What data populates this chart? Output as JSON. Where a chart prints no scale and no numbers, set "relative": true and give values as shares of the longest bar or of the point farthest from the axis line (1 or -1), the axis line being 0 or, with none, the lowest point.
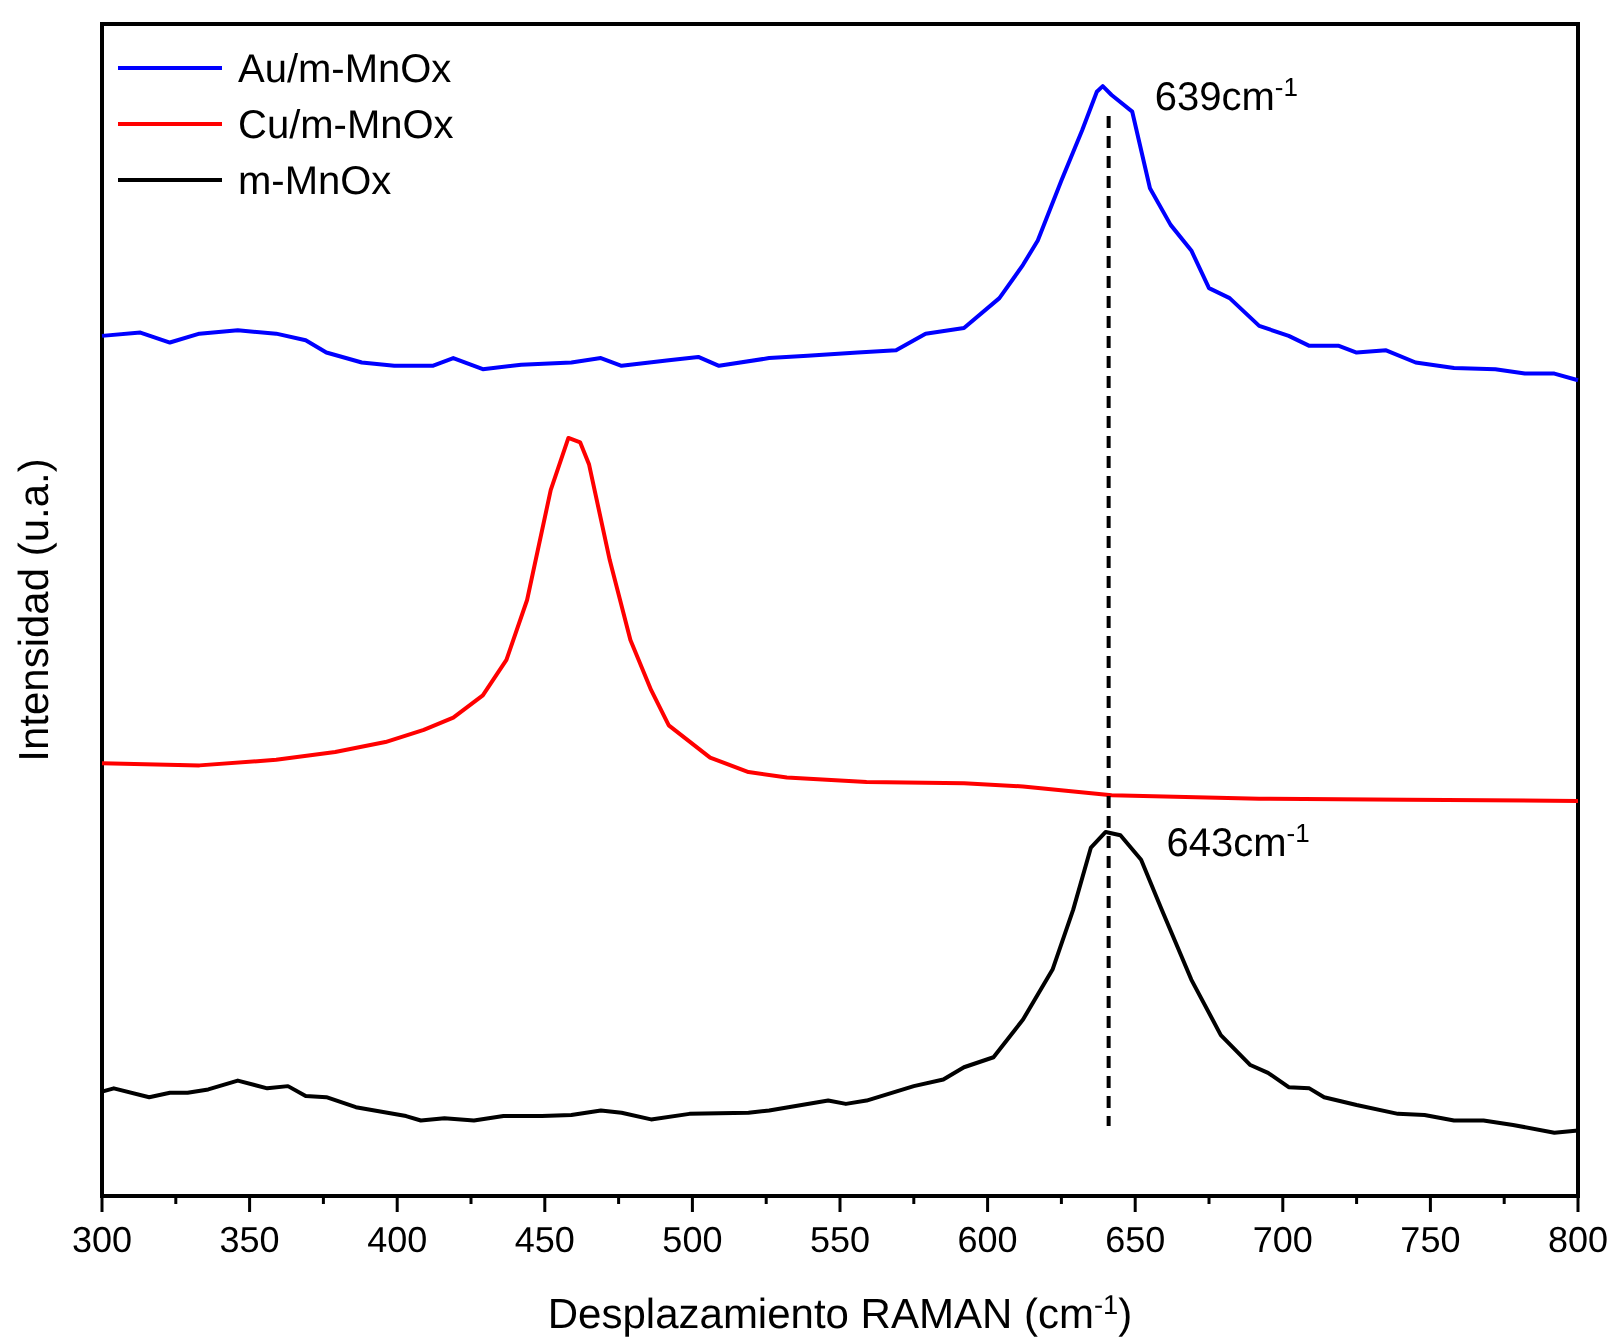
{
  "chart_data": {
    "type": "line",
    "relative": true,
    "xlabel": "Desplazamiento RAMAN (cm$^{-1}$)",
    "ylabel": "Intensidad (u.a.)",
    "xlim": [
      300,
      800
    ],
    "xticks": [
      300,
      {
        "value": 325,
        "label": null
      },
      350,
      {
        "value": 375,
        "label": null
      },
      400,
      {
        "value": 425,
        "label": null
      },
      450,
      {
        "value": 475,
        "label": null
      },
      500,
      {
        "value": 525,
        "label": null
      },
      550,
      {
        "value": 575,
        "label": null
      },
      600,
      {
        "value": 625,
        "label": null
      },
      650,
      {
        "value": 675,
        "label": null
      },
      700,
      {
        "value": 725,
        "label": null
      },
      750,
      {
        "value": 775,
        "label": null
      },
      800
    ],
    "legend": "top left",
    "grid": false,
    "line_style": "solid",
    "marker": "none",
    "series": [
      {
        "name": "Au/m-MnOx",
        "color": "#0000ff",
        "x": [
          300,
          313,
          323,
          333,
          346,
          359,
          369,
          376,
          388,
          399,
          412,
          419,
          429,
          442,
          459,
          469,
          476,
          492,
          502,
          509,
          526,
          539,
          556,
          569,
          579,
          592,
          604,
          612,
          617,
          625,
          632,
          637,
          639,
          642,
          649,
          655,
          662,
          669,
          675,
          682,
          692,
          702,
          709,
          719,
          725,
          735,
          745,
          758,
          772,
          782,
          792,
          800
        ],
        "values": [
          0.775,
          0.778,
          0.769,
          0.777,
          0.78,
          0.777,
          0.771,
          0.76,
          0.751,
          0.748,
          0.748,
          0.755,
          0.745,
          0.749,
          0.751,
          0.755,
          0.748,
          0.753,
          0.756,
          0.748,
          0.755,
          0.757,
          0.76,
          0.762,
          0.777,
          0.782,
          0.809,
          0.839,
          0.861,
          0.915,
          0.96,
          0.995,
          1.0,
          0.992,
          0.977,
          0.908,
          0.875,
          0.852,
          0.818,
          0.809,
          0.784,
          0.775,
          0.766,
          0.766,
          0.76,
          0.762,
          0.751,
          0.746,
          0.745,
          0.741,
          0.741,
          0.735
        ]
      },
      {
        "name": "Cu/m-MnOx",
        "color": "#ff0000",
        "x": [
          300,
          333,
          359,
          379,
          396,
          409,
          419,
          429,
          437,
          444,
          452,
          458,
          462,
          465,
          472,
          479,
          486,
          492,
          506,
          519,
          532,
          559,
          592,
          612,
          642,
          692,
          742,
          800
        ],
        "values": [
          0.39,
          0.388,
          0.393,
          0.4,
          0.409,
          0.42,
          0.431,
          0.451,
          0.483,
          0.537,
          0.636,
          0.683,
          0.679,
          0.659,
          0.573,
          0.501,
          0.456,
          0.424,
          0.395,
          0.382,
          0.377,
          0.373,
          0.372,
          0.369,
          0.361,
          0.358,
          0.357,
          0.356
        ]
      },
      {
        "name": "m-MnOx",
        "color": "#000000",
        "x": [
          300,
          304,
          316,
          323,
          329,
          336,
          346,
          356,
          363,
          369,
          376,
          386,
          403,
          408,
          416,
          426,
          436,
          449,
          459,
          469,
          476,
          486,
          499,
          519,
          526,
          546,
          552,
          559,
          575,
          585,
          592,
          602,
          612,
          622,
          629,
          635,
          640,
          645,
          652,
          659,
          669,
          679,
          689,
          695,
          702,
          709,
          714,
          725,
          739,
          748,
          758,
          768,
          778,
          792,
          800
        ],
        "values": [
          0.094,
          0.097,
          0.089,
          0.093,
          0.093,
          0.096,
          0.104,
          0.097,
          0.099,
          0.09,
          0.089,
          0.08,
          0.072,
          0.068,
          0.07,
          0.068,
          0.072,
          0.072,
          0.073,
          0.077,
          0.075,
          0.069,
          0.074,
          0.075,
          0.077,
          0.086,
          0.083,
          0.086,
          0.099,
          0.105,
          0.116,
          0.125,
          0.159,
          0.204,
          0.258,
          0.314,
          0.328,
          0.325,
          0.303,
          0.258,
          0.195,
          0.145,
          0.118,
          0.111,
          0.098,
          0.097,
          0.089,
          0.082,
          0.074,
          0.073,
          0.068,
          0.068,
          0.064,
          0.057,
          0.059
        ]
      }
    ],
    "ref_lines": [
      {
        "axis": "x",
        "value": 641,
        "line_style": "dashed",
        "color": "#000000"
      }
    ],
    "annotations": [
      {
        "text": "639cm$^{-1}$",
        "x": 639,
        "y": 1.0
      },
      {
        "text": "643cm$^{-1}$",
        "x": 643,
        "y": 0.328
      }
    ]
  }
}
